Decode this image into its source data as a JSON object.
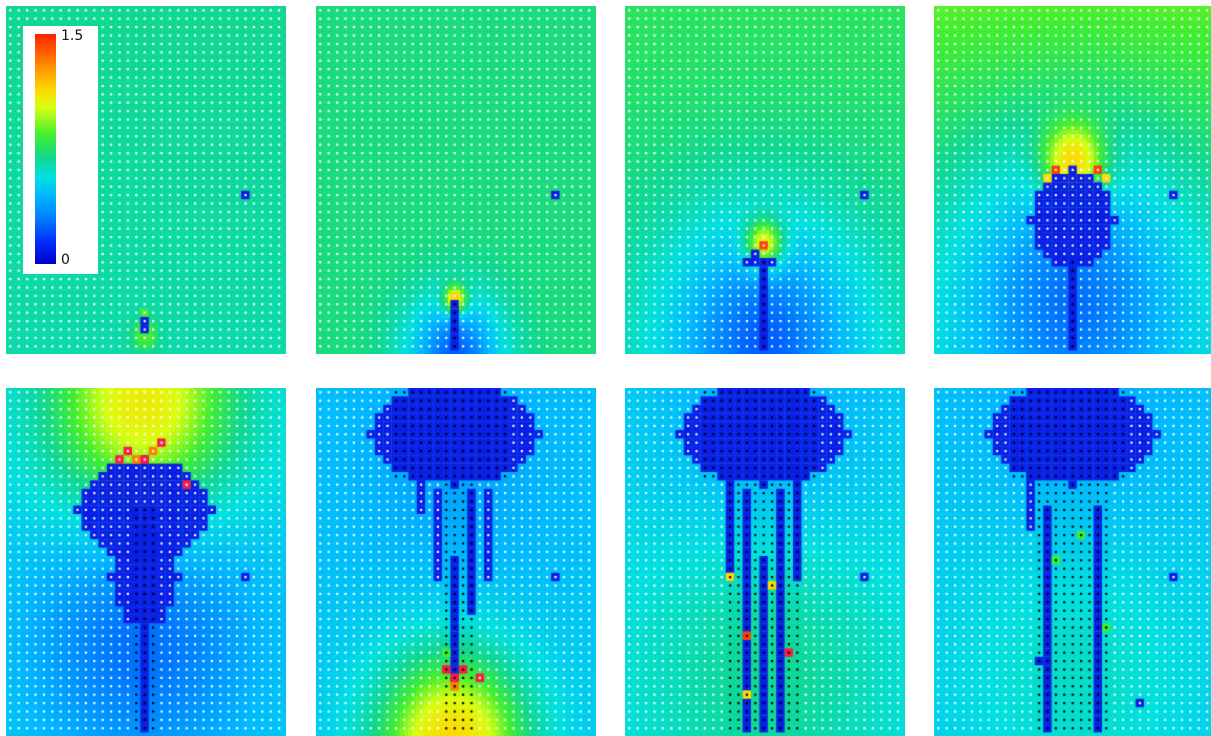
{
  "colorbar": {
    "max_label": "1.5",
    "min_label": "0",
    "gradient_colors": [
      "#ff2000",
      "#ff7f00",
      "#ffd800",
      "#d8ff10",
      "#40ee30",
      "#10d890",
      "#00e0e0",
      "#00b8ff",
      "#0080ff",
      "#0030ff",
      "#0000c8"
    ]
  },
  "panel_count": 8,
  "colors": {
    "field_background": "#1ed8a0",
    "low_value": "#0a1ee6",
    "node_dot": "#ffffff",
    "ruptured_node_dot": "#000000",
    "high_value": "#ff2000"
  }
}
